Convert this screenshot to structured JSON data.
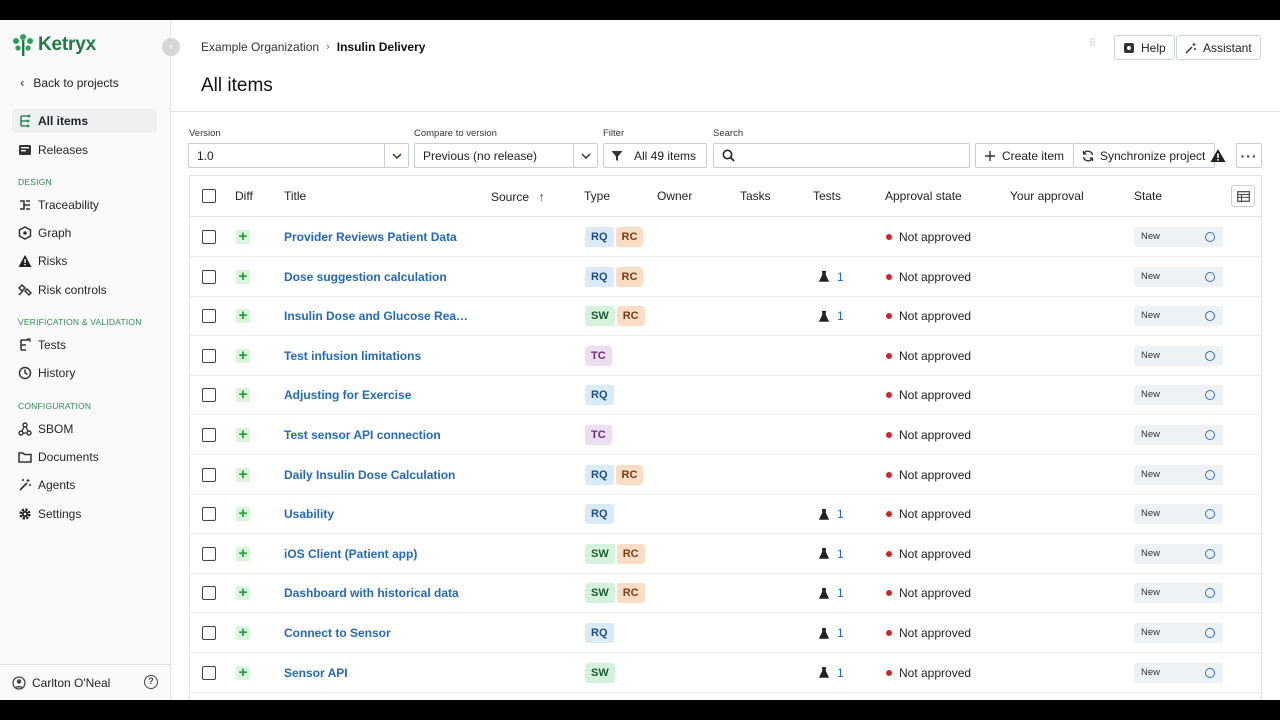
{
  "app": {
    "name": "Ketryx",
    "brand_color": "#1e7b46",
    "link_color": "#2369b6"
  },
  "sidebar": {
    "back_label": "Back to projects",
    "top_items": [
      {
        "label": "All items",
        "icon": "tree-items-icon",
        "active": true
      },
      {
        "label": "Releases",
        "icon": "releases-icon",
        "active": false
      }
    ],
    "sections": [
      {
        "label": "DESIGN",
        "items": [
          {
            "label": "Traceability",
            "icon": "traceability-icon"
          },
          {
            "label": "Graph",
            "icon": "graph-icon"
          },
          {
            "label": "Risks",
            "icon": "warning-icon"
          },
          {
            "label": "Risk controls",
            "icon": "risk-controls-icon"
          }
        ]
      },
      {
        "label": "VERIFICATION & VALIDATION",
        "items": [
          {
            "label": "Tests",
            "icon": "tests-icon"
          },
          {
            "label": "History",
            "icon": "history-icon"
          }
        ]
      },
      {
        "label": "CONFIGURATION",
        "items": [
          {
            "label": "SBOM",
            "icon": "sbom-icon"
          },
          {
            "label": "Documents",
            "icon": "folder-icon"
          },
          {
            "label": "Agents",
            "icon": "magic-wand-icon"
          },
          {
            "label": "Settings",
            "icon": "gear-icon"
          }
        ]
      }
    ],
    "user_name": "Carlton O'Neal"
  },
  "header": {
    "breadcrumb": {
      "org": "Example Organization",
      "project": "Insulin Delivery"
    },
    "title": "All items",
    "help_label": "Help",
    "assistant_label": "Assistant"
  },
  "toolbar": {
    "version_label": "Version",
    "version_value": "1.0",
    "compare_label": "Compare to version",
    "compare_value": "Previous (no release)",
    "filter_label": "Filter",
    "filter_value": "All 49 items",
    "search_label": "Search",
    "search_value": "",
    "create_label": "Create item",
    "sync_label": "Synchronize project"
  },
  "table": {
    "columns": {
      "diff": "Diff",
      "title": "Title",
      "source": "Source",
      "type": "Type",
      "owner": "Owner",
      "tasks": "Tasks",
      "tests": "Tests",
      "approval": "Approval state",
      "your_approval": "Your approval",
      "state": "State"
    },
    "rows": [
      {
        "title": "Provider Reviews Patient Data",
        "types": [
          "RQ",
          "RC"
        ],
        "tests": "",
        "approval": "Not approved",
        "state": "New"
      },
      {
        "title": "Dose suggestion calculation",
        "types": [
          "RQ",
          "RC"
        ],
        "tests": "1",
        "approval": "Not approved",
        "state": "New"
      },
      {
        "title": "Insulin Dose and Glucose Reading ...",
        "types": [
          "SW",
          "RC"
        ],
        "tests": "1",
        "approval": "Not approved",
        "state": "New"
      },
      {
        "title": "Test infusion limitations",
        "types": [
          "TC"
        ],
        "tests": "",
        "approval": "Not approved",
        "state": "New"
      },
      {
        "title": "Adjusting for Exercise",
        "types": [
          "RQ"
        ],
        "tests": "",
        "approval": "Not approved",
        "state": "New"
      },
      {
        "title": "Test sensor API connection",
        "types": [
          "TC"
        ],
        "tests": "",
        "approval": "Not approved",
        "state": "New"
      },
      {
        "title": "Daily Insulin Dose Calculation",
        "types": [
          "RQ",
          "RC"
        ],
        "tests": "",
        "approval": "Not approved",
        "state": "New"
      },
      {
        "title": "Usability",
        "types": [
          "RQ"
        ],
        "tests": "1",
        "approval": "Not approved",
        "state": "New"
      },
      {
        "title": "iOS Client (Patient app)",
        "types": [
          "SW",
          "RC"
        ],
        "tests": "1",
        "approval": "Not approved",
        "state": "New"
      },
      {
        "title": "Dashboard with historical data",
        "types": [
          "SW",
          "RC"
        ],
        "tests": "1",
        "approval": "Not approved",
        "state": "New"
      },
      {
        "title": "Connect to Sensor",
        "types": [
          "RQ"
        ],
        "tests": "1",
        "approval": "Not approved",
        "state": "New"
      },
      {
        "title": "Sensor API",
        "types": [
          "SW"
        ],
        "tests": "1",
        "approval": "Not approved",
        "state": "New"
      }
    ]
  }
}
